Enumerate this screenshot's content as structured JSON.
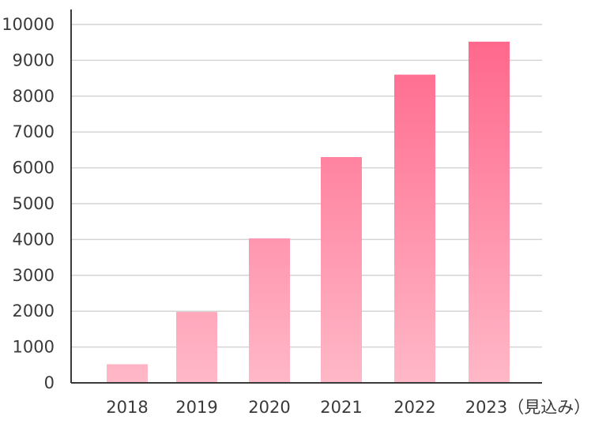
{
  "chart_data": {
    "type": "bar",
    "title": "",
    "xlabel": "",
    "ylabel": "",
    "categories": [
      "2018",
      "2019",
      "2020",
      "2021",
      "2022",
      "2023（見込み）"
    ],
    "values": [
      520,
      1980,
      4030,
      6300,
      8600,
      9520
    ],
    "ylim": [
      0,
      10000
    ],
    "yticks": [
      0,
      1000,
      2000,
      3000,
      4000,
      5000,
      6000,
      7000,
      8000,
      9000,
      10000
    ],
    "grid": true,
    "legend": "none",
    "colors": {
      "bar_top": "#ff6489",
      "bar_bottom": "#ffb8c8",
      "grid": "#d4d4d4",
      "axis": "#3a3a3a",
      "text": "#3a3a3a"
    }
  }
}
